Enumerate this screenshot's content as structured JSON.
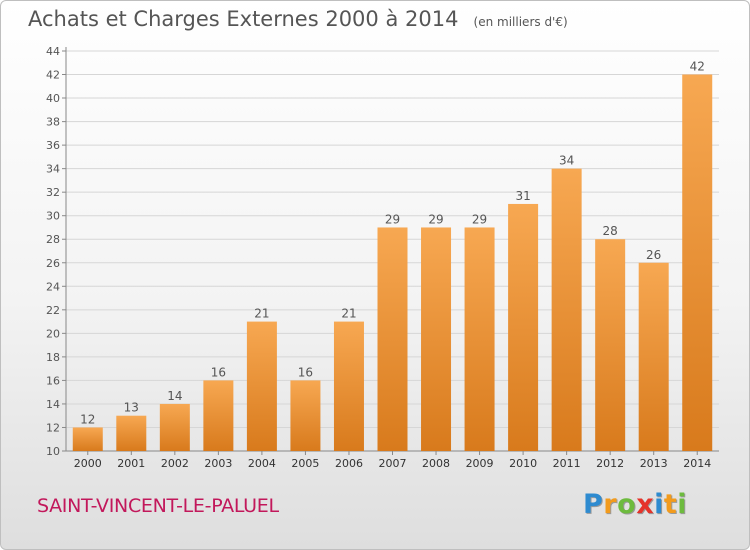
{
  "header": {
    "title": "Achats et Charges Externes 2000 à 2014",
    "subtitle": "(en milliers d'€)"
  },
  "footer": {
    "commune": "SAINT-VINCENT-LE-PALUEL",
    "brand": "Proxiti",
    "brand_letters": [
      {
        "char": "P",
        "color": "#2e8bd0"
      },
      {
        "char": "r",
        "color": "#f29b1d"
      },
      {
        "char": "o",
        "color": "#6dbb3e"
      },
      {
        "char": "x",
        "color": "#e5332a"
      },
      {
        "char": "i",
        "color": "#2e8bd0"
      },
      {
        "char": "t",
        "color": "#f29b1d"
      },
      {
        "char": "i",
        "color": "#6dbb3e"
      }
    ]
  },
  "colors": {
    "bar_light": "#f7a852",
    "bar_dark": "#d87a1c",
    "grid": "#d6d6d6",
    "axis": "#888888",
    "text": "#555555",
    "commune": "#c2185b"
  },
  "chart_data": {
    "type": "bar",
    "categories": [
      "2000",
      "2001",
      "2002",
      "2003",
      "2004",
      "2005",
      "2006",
      "2007",
      "2008",
      "2009",
      "2010",
      "2011",
      "2012",
      "2013",
      "2014"
    ],
    "values": [
      12,
      13,
      14,
      16,
      21,
      16,
      21,
      29,
      29,
      29,
      31,
      34,
      28,
      26,
      42
    ],
    "data_labels": [
      "12",
      "13",
      "14",
      "16",
      "21",
      "16",
      "21",
      "29",
      "29",
      "29",
      "31",
      "34",
      "28",
      "26",
      "42"
    ],
    "y_ticks": [
      "10",
      "12",
      "14",
      "16",
      "18",
      "20",
      "22",
      "24",
      "26",
      "28",
      "30",
      "32",
      "34",
      "36",
      "38",
      "40",
      "42",
      "44"
    ],
    "ylim": [
      10,
      44
    ],
    "grid": true
  }
}
